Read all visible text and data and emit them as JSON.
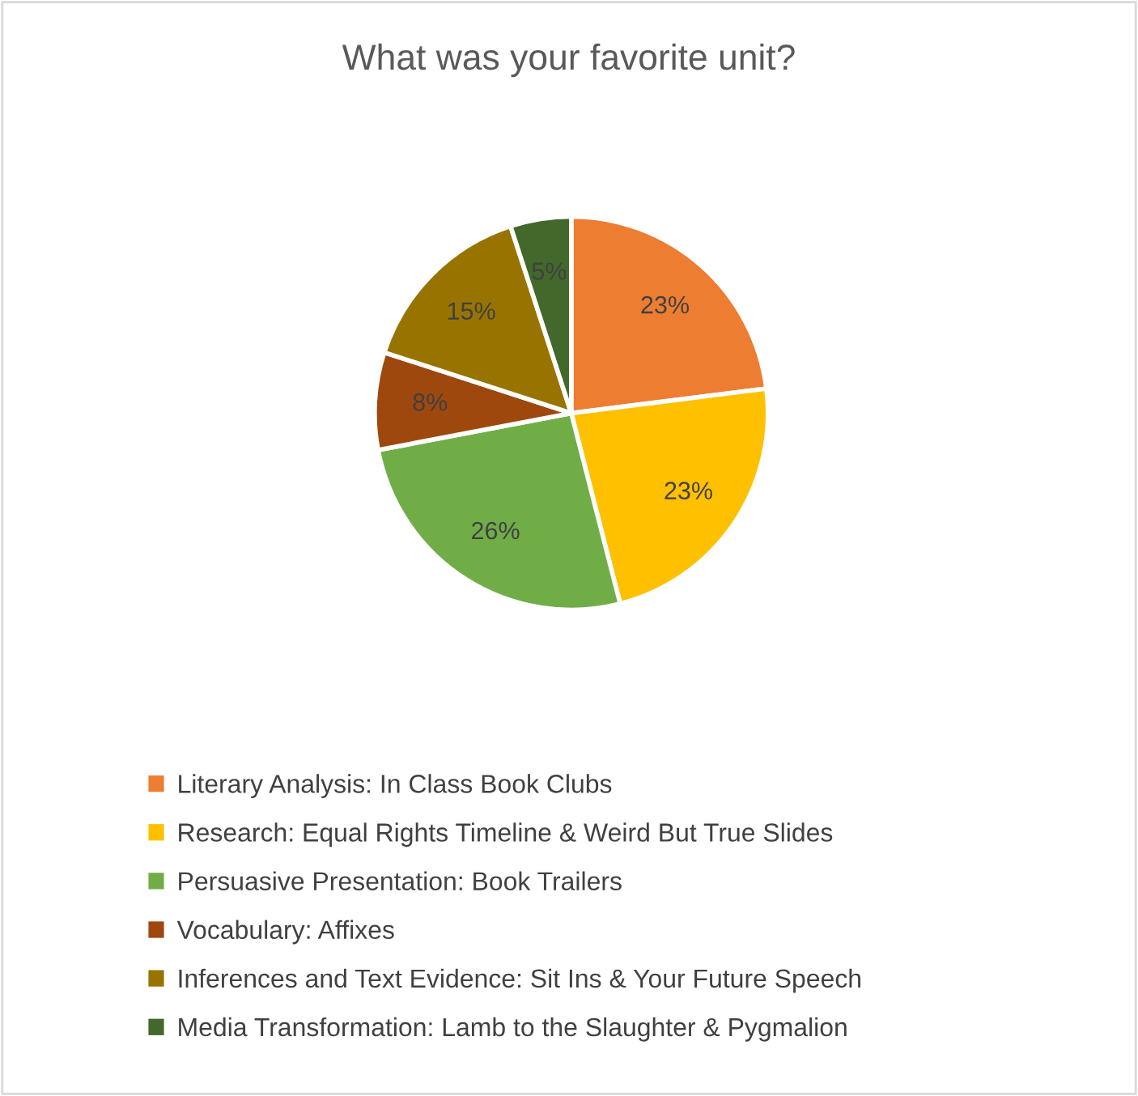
{
  "chart_data": {
    "type": "pie",
    "title": "What was your favorite unit?",
    "categories": [
      "Literary Analysis: In Class Book Clubs",
      "Research: Equal Rights Timeline & Weird But True Slides",
      "Persuasive Presentation: Book Trailers",
      "Vocabulary: Affixes",
      "Inferences and Text Evidence: Sit Ins & Your Future Speech",
      "Media Transformation: Lamb to the Slaughter & Pygmalion"
    ],
    "values": [
      23,
      23,
      26,
      8,
      15,
      5
    ],
    "colors": [
      "#ed7d31",
      "#ffc000",
      "#70ad47",
      "#9e480e",
      "#997300",
      "#43682b"
    ],
    "value_labels": [
      "23%",
      "23%",
      "26%",
      "8%",
      "15%",
      "5%"
    ],
    "legend": "bottom"
  }
}
